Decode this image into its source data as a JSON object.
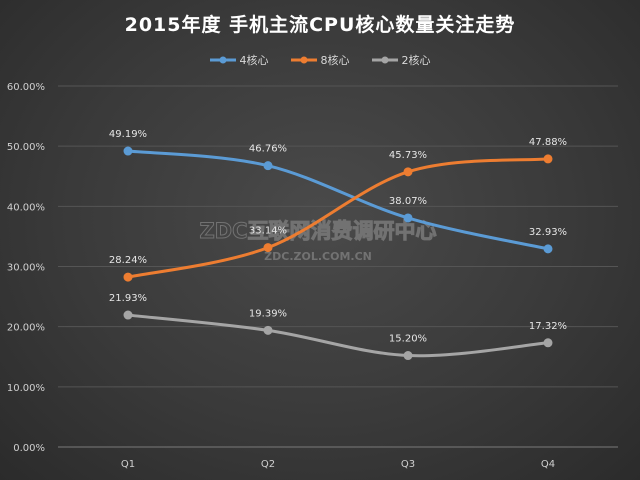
{
  "chart_data": {
    "type": "line",
    "title": "2015年度 手机主流CPU核心数量关注走势",
    "categories": [
      "Q1",
      "Q2",
      "Q3",
      "Q4"
    ],
    "series": [
      {
        "name": "4核心",
        "values": [
          49.19,
          46.76,
          38.07,
          32.93
        ],
        "labels": [
          "49.19%",
          "46.76%",
          "38.07%",
          "32.93%"
        ],
        "color": "#5b9bd5"
      },
      {
        "name": "8核心",
        "values": [
          28.24,
          33.14,
          45.73,
          47.88
        ],
        "labels": [
          "28.24%",
          "33.14%",
          "45.73%",
          "47.88%"
        ],
        "color": "#ed7d31"
      },
      {
        "name": "2核心",
        "values": [
          21.93,
          19.39,
          15.2,
          17.32
        ],
        "labels": [
          "21.93%",
          "19.39%",
          "15.20%",
          "17.32%"
        ],
        "color": "#a5a5a5"
      }
    ],
    "ylim": [
      0,
      60
    ],
    "yticks": [
      "0.00%",
      "10.00%",
      "20.00%",
      "30.00%",
      "40.00%",
      "50.00%",
      "60.00%"
    ],
    "grid": true,
    "legend": "top",
    "watermark": {
      "line1": "ZDC互联网消费调研中心",
      "line2": "ZDC.ZOL.COM.CN"
    }
  }
}
